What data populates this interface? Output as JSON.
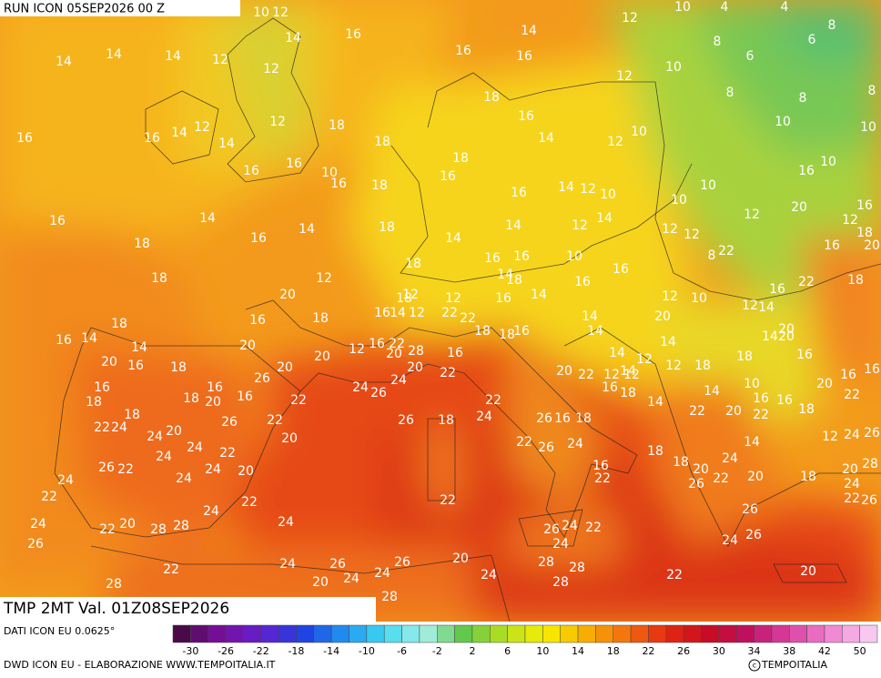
{
  "header": {
    "run": "RUN ICON 05SEP2026 00 Z",
    "validity": "TMP 2MT Val. 01Z08SEP2026"
  },
  "map": {
    "labels": [
      10,
      12,
      10,
      4,
      4,
      12,
      8,
      14,
      16,
      14,
      16,
      16,
      8,
      6,
      6,
      14,
      14,
      14,
      12,
      12,
      10,
      12,
      8,
      8,
      8,
      18,
      16,
      18,
      12,
      14,
      16,
      16,
      12,
      10,
      10,
      14,
      18,
      14,
      12,
      10,
      18,
      16,
      16,
      16,
      10,
      10,
      16,
      16,
      18,
      16,
      14,
      12,
      10,
      10,
      10,
      20,
      16,
      14,
      14,
      16,
      18,
      14,
      14,
      12,
      14,
      12,
      12,
      12,
      16,
      12,
      18,
      18,
      18,
      16,
      16,
      10,
      8,
      22,
      16,
      20,
      18,
      12,
      14,
      18,
      16,
      16,
      20,
      18,
      12,
      12,
      16,
      14,
      12,
      10,
      12,
      14,
      16,
      22,
      18,
      16,
      18,
      16,
      14,
      12,
      22,
      22,
      18,
      16,
      14,
      20,
      20,
      18,
      16,
      14,
      14,
      20,
      16,
      20,
      20,
      12,
      16,
      22,
      20,
      28,
      16,
      18,
      14,
      14,
      14,
      14,
      20,
      18,
      20,
      26,
      20,
      22,
      24,
      26,
      24,
      20,
      22,
      12,
      14,
      12,
      12,
      12,
      18,
      18,
      16,
      16,
      16,
      16,
      16,
      18,
      18,
      20,
      16,
      22,
      22,
      16,
      18,
      14,
      14,
      10,
      16,
      16,
      20,
      22,
      18,
      22,
      24,
      26,
      22,
      26,
      18,
      24,
      26,
      16,
      18,
      22,
      20,
      22,
      18,
      20,
      24,
      20,
      24,
      22,
      24,
      22,
      26,
      24,
      18,
      14,
      12,
      24,
      26,
      26,
      22,
      24,
      24,
      20,
      16,
      18,
      20,
      22,
      24,
      20,
      18,
      20,
      28,
      24,
      22,
      26,
      24,
      26,
      22,
      22,
      22,
      24,
      22,
      26,
      24,
      22,
      20,
      28,
      28,
      24,
      26,
      24,
      22,
      26,
      24,
      24,
      26,
      22,
      24,
      26,
      26,
      20,
      28,
      28,
      24,
      24,
      22,
      20,
      28,
      20,
      24,
      28,
      28
    ],
    "source": "DATI ICON EU 0.0625°"
  },
  "legend": {
    "ticks": [
      -30,
      -26,
      -22,
      -18,
      -14,
      -10,
      -6,
      -2,
      2,
      6,
      10,
      14,
      18,
      22,
      26,
      30,
      34,
      38,
      42,
      50
    ]
  },
  "footer": {
    "credit": "DWD ICON EU - ELABORAZIONE WWW.TEMPOITALIA.IT",
    "copyright": "TEMPOITALIA"
  }
}
